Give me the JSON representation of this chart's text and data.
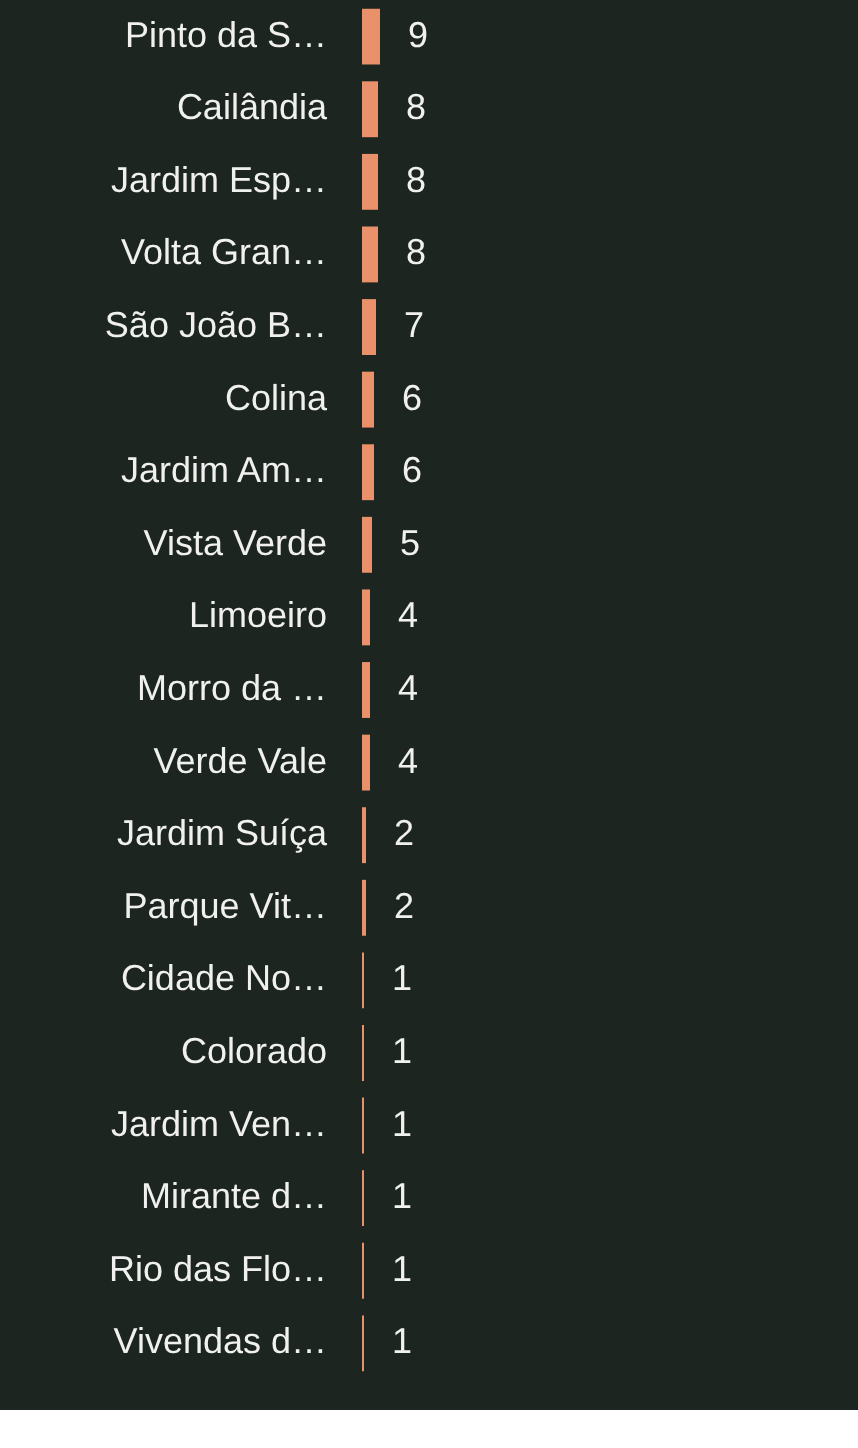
{
  "chart_data": {
    "type": "bar",
    "orientation": "horizontal",
    "categories": [
      "Pinto da S…",
      "Cailândia",
      "Jardim Esp…",
      "Volta Gran…",
      "São João B…",
      "Colina",
      "Jardim Am…",
      "Vista Verde",
      "Limoeiro",
      "Morro da …",
      "Verde Vale",
      "Jardim Suíça",
      "Parque Vit…",
      "Cidade No…",
      "Colorado",
      "Jardim Ven…",
      "Mirante d…",
      "Rio das Flo…",
      "Vivendas d…"
    ],
    "values": [
      9,
      8,
      8,
      8,
      7,
      6,
      6,
      5,
      4,
      4,
      4,
      2,
      2,
      1,
      1,
      1,
      1,
      1,
      1
    ],
    "color": "#e8916a",
    "data_labels": true,
    "tick_labels": "y"
  }
}
